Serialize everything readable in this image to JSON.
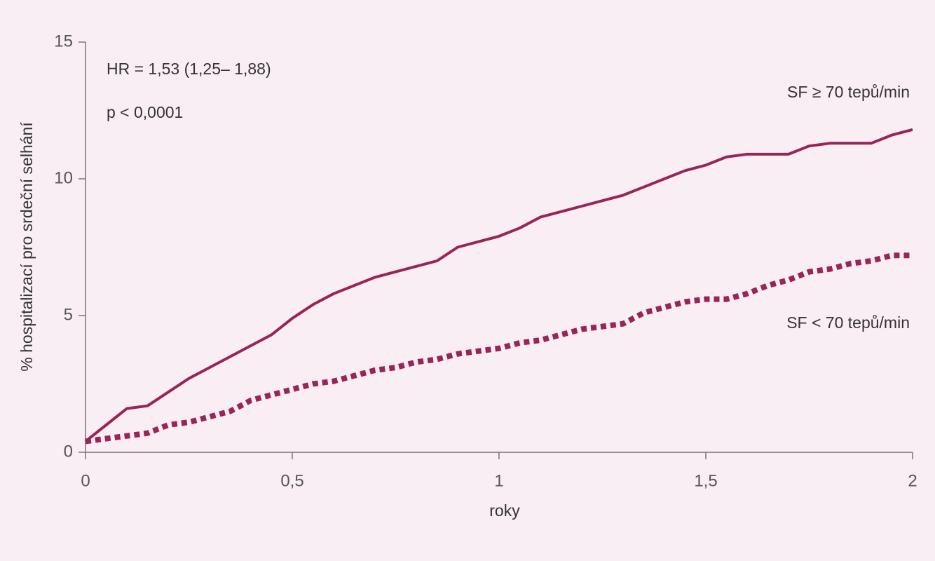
{
  "chart_data": {
    "type": "line",
    "xlabel": "roky",
    "ylabel": "% hospitalizací pro srdeční selhání",
    "annotations": [
      "HR = 1,53 (1,25– 1,88)",
      "p < 0,0001"
    ],
    "x": [
      0,
      0.05,
      0.1,
      0.15,
      0.2,
      0.25,
      0.3,
      0.35,
      0.4,
      0.45,
      0.5,
      0.55,
      0.6,
      0.65,
      0.7,
      0.75,
      0.8,
      0.85,
      0.9,
      0.95,
      1.0,
      1.05,
      1.1,
      1.15,
      1.2,
      1.25,
      1.3,
      1.35,
      1.4,
      1.45,
      1.5,
      1.55,
      1.6,
      1.65,
      1.7,
      1.75,
      1.8,
      1.85,
      1.9,
      1.95,
      2.0
    ],
    "series": [
      {
        "name": "SF ≥ 70 tepů/min",
        "color": "#9a2457",
        "style": "solid",
        "values": [
          0.4,
          1.0,
          1.6,
          1.7,
          2.2,
          2.7,
          3.1,
          3.5,
          3.9,
          4.3,
          4.9,
          5.4,
          5.8,
          6.1,
          6.4,
          6.6,
          6.8,
          7.0,
          7.5,
          7.7,
          7.9,
          8.2,
          8.6,
          8.8,
          9.0,
          9.2,
          9.4,
          9.7,
          10.0,
          10.3,
          10.5,
          10.8,
          10.9,
          10.9,
          10.9,
          11.2,
          11.3,
          11.3,
          11.3,
          11.6,
          11.8
        ]
      },
      {
        "name": "SF < 70 tepů/min",
        "color": "#9a2457",
        "style": "dotted",
        "values": [
          0.4,
          0.5,
          0.6,
          0.7,
          1.0,
          1.1,
          1.3,
          1.5,
          1.9,
          2.1,
          2.3,
          2.5,
          2.6,
          2.8,
          3.0,
          3.1,
          3.3,
          3.4,
          3.6,
          3.7,
          3.8,
          4.0,
          4.1,
          4.3,
          4.5,
          4.6,
          4.7,
          5.1,
          5.3,
          5.5,
          5.6,
          5.6,
          5.8,
          6.1,
          6.3,
          6.6,
          6.7,
          6.9,
          7.0,
          7.2,
          7.2
        ]
      }
    ],
    "xlim": [
      0,
      2
    ],
    "xticks": [
      0,
      {
        "value": 0.5,
        "label": "0,5"
      },
      1,
      {
        "value": 1.5,
        "label": "1,5"
      },
      2
    ],
    "ylim": [
      0,
      15
    ],
    "yticks": [
      0,
      5,
      10,
      15
    ],
    "grid": false
  }
}
